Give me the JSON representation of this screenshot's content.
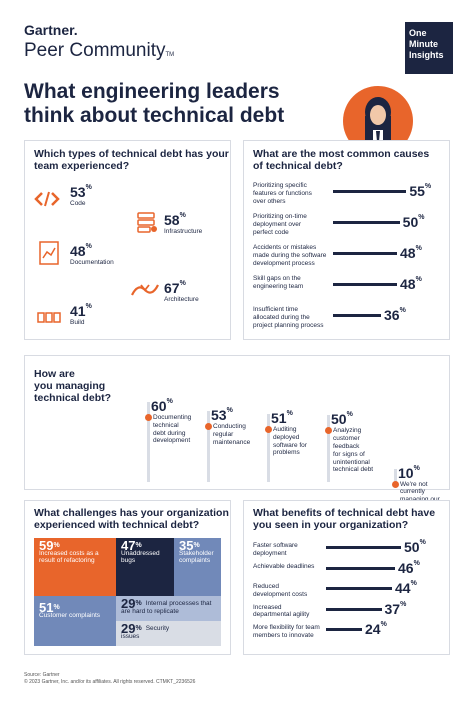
{
  "brand": {
    "line1": "Gartner.",
    "line2": "Peer Community",
    "tm": "TM"
  },
  "badge": {
    "line1": "One",
    "line2": "Minute",
    "line3": "Insights"
  },
  "headline": {
    "line1": "What engineering leaders",
    "line2": "think about technical debt"
  },
  "colors": {
    "navy": "#1c2541",
    "orange": "#e8652b",
    "steel": "#7189b9",
    "lightsteel": "#aebcd8",
    "grey": "#d9dde5"
  },
  "types": {
    "title_line1": "Which types of technical debt has your",
    "title_line2": "team experienced?",
    "items": [
      {
        "value": "53",
        "label": "Code",
        "icon": "code-icon"
      },
      {
        "value": "58",
        "label": "Infrastructure",
        "icon": "server-icon"
      },
      {
        "value": "48",
        "label": "Documentation",
        "icon": "document-icon"
      },
      {
        "value": "67",
        "label": "Architecture",
        "icon": "architecture-icon"
      },
      {
        "value": "41",
        "label": "Build",
        "icon": "build-icon"
      }
    ]
  },
  "causes": {
    "title_line1": "What are the most common causes",
    "title_line2": "of technical debt?"
  },
  "managing": {
    "title_line1": "How are",
    "title_line2": "you managing",
    "title_line3": "technical debt?"
  },
  "challenges": {
    "title_line1": "What challenges has your organization",
    "title_line2": "experienced with technical debt?",
    "tiles": [
      {
        "value": "59",
        "line1": "Increased costs as a",
        "line2": "result of refactoring"
      },
      {
        "value": "47",
        "line1": "Unaddressed",
        "line2": "bugs"
      },
      {
        "value": "35",
        "line1": "Stakeholder",
        "line2": "complaints"
      },
      {
        "value": "51",
        "line1": "Customer complaints",
        "line2": ""
      },
      {
        "value": "29",
        "line1": "Internal processes that",
        "line2": "are hard to replicate"
      },
      {
        "value": "29",
        "line1": "Security",
        "line2": "issues"
      }
    ]
  },
  "benefits": {
    "title_line1": "What benefits of technical debt have",
    "title_line2": "you seen in your organization?"
  },
  "footer": {
    "line1": "Source: Gartner",
    "line2": "© 2023 Gartner, Inc. and/or its affiliates. All rights reserved. CTMKT_2236526"
  },
  "percent_sign": "%",
  "chart_data": [
    {
      "type": "bar",
      "title": "What are the most common causes of technical debt?",
      "categories": [
        [
          "Prioritizing specific",
          "features or functions",
          "over others"
        ],
        [
          "Prioritizing on-time",
          "deployment over",
          "perfect code"
        ],
        [
          "Accidents or mistakes",
          "made during the software",
          "development process"
        ],
        [
          "Skill gaps on the",
          "engineering team"
        ],
        [
          "Insufficient time",
          "allocated during the",
          "project planning process"
        ]
      ],
      "values": [
        55,
        50,
        48,
        48,
        36
      ],
      "unit": "%",
      "xlim": [
        0,
        60
      ]
    },
    {
      "type": "bar",
      "title": "How are you managing technical debt?",
      "categories": [
        [
          "Documenting",
          "technical",
          "debt during",
          "development"
        ],
        [
          "Conducting",
          "regular",
          "maintenance"
        ],
        [
          "Auditing",
          "deployed",
          "software for",
          "problems"
        ],
        [
          "Analyzing",
          "customer",
          "feedback",
          "for signs of",
          "unintentional",
          "technical debt"
        ],
        [
          "We're not",
          "currently",
          "managing our",
          "technical debt"
        ]
      ],
      "values": [
        60,
        53,
        51,
        50,
        10
      ],
      "unit": "%",
      "ylim": [
        0,
        60
      ]
    },
    {
      "type": "bar",
      "title": "What benefits of technical debt have you seen in your organization?",
      "categories": [
        [
          "Faster software",
          "deployment"
        ],
        [
          "Achievable deadlines"
        ],
        [
          "Reduced",
          "development costs"
        ],
        [
          "Increased",
          "departmental agility"
        ],
        [
          "More flexibility for team",
          "members to innovate"
        ]
      ],
      "values": [
        50,
        46,
        44,
        37,
        24
      ],
      "unit": "%",
      "xlim": [
        0,
        60
      ]
    }
  ]
}
